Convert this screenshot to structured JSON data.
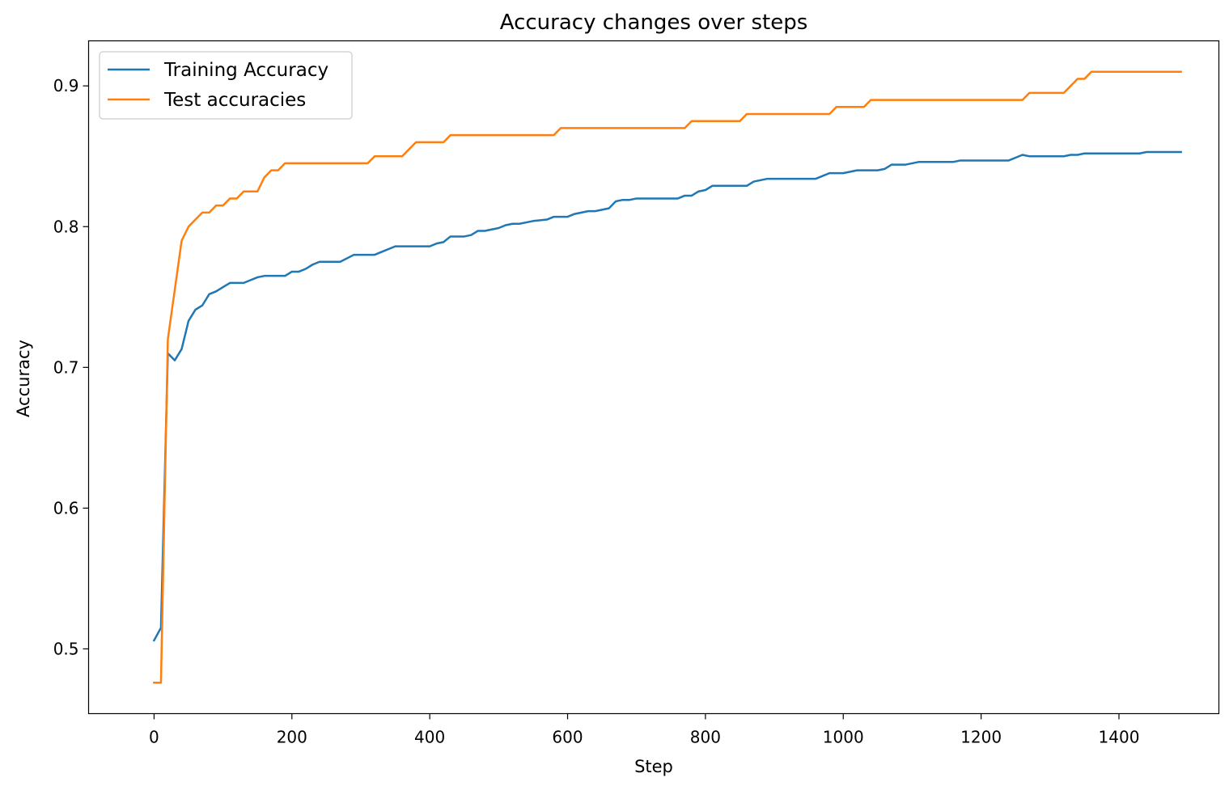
{
  "chart_data": {
    "type": "line",
    "title": "Accuracy changes over steps",
    "xlabel": "Step",
    "ylabel": "Accuracy",
    "xlim": [
      -95,
      1545
    ],
    "ylim": [
      0.454,
      0.932
    ],
    "xticks": [
      0,
      200,
      400,
      600,
      800,
      1000,
      1200,
      1400
    ],
    "yticks": [
      0.5,
      0.6,
      0.7,
      0.8,
      0.9
    ],
    "ytick_labels": [
      "0.5",
      "0.6",
      "0.7",
      "0.8",
      "0.9"
    ],
    "grid": false,
    "legend_position": "top-left",
    "series": [
      {
        "name": "Training Accuracy",
        "color": "#1f77b4",
        "points": [
          [
            0,
            0.506
          ],
          [
            10,
            0.515
          ],
          [
            20,
            0.71
          ],
          [
            30,
            0.705
          ],
          [
            40,
            0.713
          ],
          [
            50,
            0.733
          ],
          [
            60,
            0.741
          ],
          [
            70,
            0.744
          ],
          [
            80,
            0.752
          ],
          [
            90,
            0.754
          ],
          [
            100,
            0.757
          ],
          [
            110,
            0.76
          ],
          [
            130,
            0.76
          ],
          [
            140,
            0.762
          ],
          [
            150,
            0.764
          ],
          [
            160,
            0.765
          ],
          [
            190,
            0.765
          ],
          [
            200,
            0.768
          ],
          [
            210,
            0.768
          ],
          [
            220,
            0.77
          ],
          [
            230,
            0.773
          ],
          [
            240,
            0.775
          ],
          [
            270,
            0.775
          ],
          [
            290,
            0.78
          ],
          [
            320,
            0.78
          ],
          [
            330,
            0.782
          ],
          [
            350,
            0.786
          ],
          [
            400,
            0.786
          ],
          [
            410,
            0.788
          ],
          [
            420,
            0.789
          ],
          [
            430,
            0.793
          ],
          [
            450,
            0.793
          ],
          [
            460,
            0.794
          ],
          [
            470,
            0.797
          ],
          [
            480,
            0.797
          ],
          [
            490,
            0.798
          ],
          [
            500,
            0.799
          ],
          [
            510,
            0.801
          ],
          [
            520,
            0.802
          ],
          [
            530,
            0.802
          ],
          [
            540,
            0.803
          ],
          [
            550,
            0.804
          ],
          [
            570,
            0.805
          ],
          [
            580,
            0.807
          ],
          [
            600,
            0.807
          ],
          [
            610,
            0.809
          ],
          [
            620,
            0.81
          ],
          [
            630,
            0.811
          ],
          [
            640,
            0.811
          ],
          [
            660,
            0.813
          ],
          [
            670,
            0.818
          ],
          [
            680,
            0.819
          ],
          [
            690,
            0.819
          ],
          [
            700,
            0.82
          ],
          [
            760,
            0.82
          ],
          [
            770,
            0.822
          ],
          [
            780,
            0.822
          ],
          [
            790,
            0.825
          ],
          [
            800,
            0.826
          ],
          [
            810,
            0.829
          ],
          [
            860,
            0.829
          ],
          [
            870,
            0.832
          ],
          [
            890,
            0.834
          ],
          [
            960,
            0.834
          ],
          [
            980,
            0.838
          ],
          [
            1000,
            0.838
          ],
          [
            1010,
            0.839
          ],
          [
            1020,
            0.84
          ],
          [
            1050,
            0.84
          ],
          [
            1060,
            0.841
          ],
          [
            1070,
            0.844
          ],
          [
            1090,
            0.844
          ],
          [
            1100,
            0.845
          ],
          [
            1110,
            0.846
          ],
          [
            1120,
            0.846
          ],
          [
            1160,
            0.846
          ],
          [
            1170,
            0.847
          ],
          [
            1240,
            0.847
          ],
          [
            1250,
            0.849
          ],
          [
            1260,
            0.851
          ],
          [
            1270,
            0.85
          ],
          [
            1320,
            0.85
          ],
          [
            1330,
            0.851
          ],
          [
            1340,
            0.851
          ],
          [
            1350,
            0.852
          ],
          [
            1430,
            0.852
          ],
          [
            1440,
            0.853
          ],
          [
            1490,
            0.853
          ]
        ]
      },
      {
        "name": "Test accuracies",
        "color": "#ff7f0e",
        "points": [
          [
            0,
            0.476
          ],
          [
            10,
            0.476
          ],
          [
            20,
            0.72
          ],
          [
            30,
            0.755
          ],
          [
            40,
            0.79
          ],
          [
            50,
            0.8
          ],
          [
            60,
            0.805
          ],
          [
            70,
            0.81
          ],
          [
            80,
            0.81
          ],
          [
            90,
            0.815
          ],
          [
            100,
            0.815
          ],
          [
            110,
            0.82
          ],
          [
            120,
            0.82
          ],
          [
            130,
            0.825
          ],
          [
            150,
            0.825
          ],
          [
            160,
            0.835
          ],
          [
            170,
            0.84
          ],
          [
            180,
            0.84
          ],
          [
            190,
            0.845
          ],
          [
            310,
            0.845
          ],
          [
            320,
            0.85
          ],
          [
            360,
            0.85
          ],
          [
            380,
            0.86
          ],
          [
            420,
            0.86
          ],
          [
            430,
            0.865
          ],
          [
            580,
            0.865
          ],
          [
            590,
            0.87
          ],
          [
            770,
            0.87
          ],
          [
            780,
            0.875
          ],
          [
            850,
            0.875
          ],
          [
            860,
            0.88
          ],
          [
            980,
            0.88
          ],
          [
            990,
            0.885
          ],
          [
            1030,
            0.885
          ],
          [
            1040,
            0.89
          ],
          [
            1260,
            0.89
          ],
          [
            1270,
            0.895
          ],
          [
            1320,
            0.895
          ],
          [
            1340,
            0.905
          ],
          [
            1350,
            0.905
          ],
          [
            1360,
            0.91
          ],
          [
            1490,
            0.91
          ]
        ]
      }
    ]
  }
}
